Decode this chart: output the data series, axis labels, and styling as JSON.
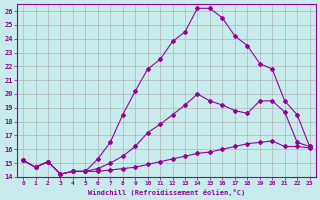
{
  "xlabel": "Windchill (Refroidissement éolien,°C)",
  "bg_color": "#c8ecec",
  "line_color": "#990099",
  "grid_color": "#aacccc",
  "xlim": [
    -0.5,
    23.5
  ],
  "ylim": [
    14,
    26.5
  ],
  "xticks": [
    0,
    1,
    2,
    3,
    4,
    5,
    6,
    7,
    8,
    9,
    10,
    11,
    12,
    13,
    14,
    15,
    16,
    17,
    18,
    19,
    20,
    21,
    22,
    23
  ],
  "yticks": [
    14,
    15,
    16,
    17,
    18,
    19,
    20,
    21,
    22,
    23,
    24,
    25,
    26
  ],
  "curve1_x": [
    0,
    1,
    2,
    3,
    4,
    5,
    6,
    7,
    8,
    9,
    10,
    11,
    12,
    13,
    14,
    15,
    16,
    17,
    18,
    19,
    20,
    21,
    22,
    23
  ],
  "curve1_y": [
    15.2,
    14.7,
    15.1,
    14.2,
    14.4,
    14.4,
    14.4,
    14.5,
    14.6,
    14.7,
    14.9,
    15.1,
    15.3,
    15.5,
    15.7,
    15.8,
    16.0,
    16.2,
    16.4,
    16.5,
    16.6,
    16.2,
    16.2,
    16.1
  ],
  "curve2_x": [
    0,
    1,
    2,
    3,
    4,
    5,
    6,
    7,
    8,
    9,
    10,
    11,
    12,
    13,
    14,
    15,
    16,
    17,
    18,
    19,
    20,
    21,
    22,
    23
  ],
  "curve2_y": [
    15.2,
    14.7,
    15.1,
    14.2,
    14.4,
    14.4,
    14.6,
    15.0,
    15.5,
    16.2,
    17.2,
    17.8,
    18.5,
    19.2,
    20.0,
    19.5,
    19.2,
    18.8,
    18.6,
    19.5,
    19.5,
    18.7,
    16.5,
    16.2
  ],
  "curve3_x": [
    0,
    1,
    2,
    3,
    4,
    5,
    6,
    7,
    8,
    9,
    10,
    11,
    12,
    13,
    14,
    15,
    16,
    17,
    18,
    19,
    20,
    21,
    22,
    23
  ],
  "curve3_y": [
    15.2,
    14.7,
    15.1,
    14.2,
    14.4,
    14.4,
    15.3,
    16.5,
    18.5,
    20.2,
    21.8,
    22.5,
    23.8,
    24.5,
    26.2,
    26.2,
    25.5,
    24.2,
    23.5,
    22.2,
    21.8,
    19.5,
    18.5,
    16.2
  ],
  "marker": "D",
  "markersize": 2.0,
  "linewidth": 0.8
}
